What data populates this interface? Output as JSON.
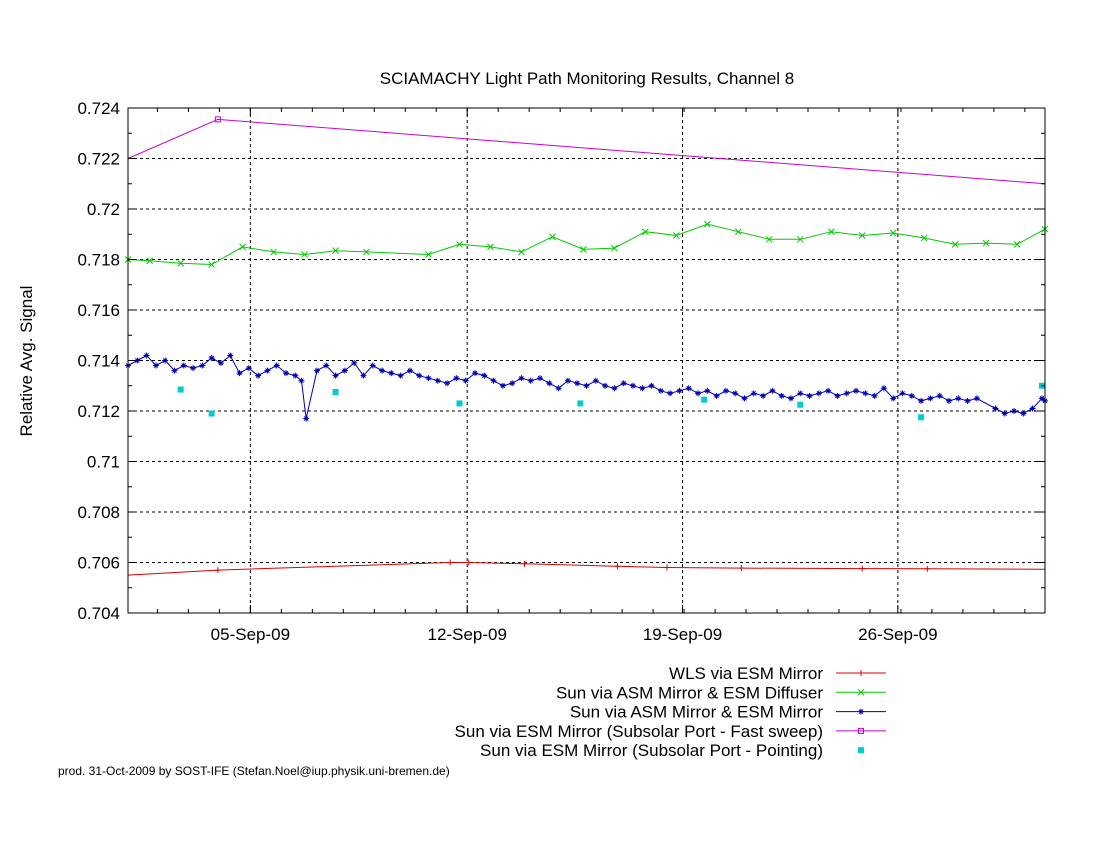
{
  "credit": "prod. 31-Oct-2009 by SOST-IFE (Stefan.Noel@iup.physik.uni-bremen.de)",
  "chart_data": {
    "type": "line",
    "title": "SCIAMACHY Light Path Monitoring Results, Channel 8",
    "xlabel": "",
    "ylabel": "Relative Avg. Signal",
    "x_unit": "day of September 2009",
    "xlim": [
      1.2,
      30.8
    ],
    "ylim": [
      0.704,
      0.724
    ],
    "y_ticks": [
      0.704,
      0.706,
      0.708,
      0.71,
      0.712,
      0.714,
      0.716,
      0.718,
      0.72,
      0.722,
      0.724
    ],
    "y_tick_labels": [
      "0.704",
      "0.706",
      "0.708",
      "0.71",
      "0.712",
      "0.714",
      "0.716",
      "0.718",
      "0.72",
      "0.722",
      "0.724"
    ],
    "x_ticks": [
      5.15,
      12.15,
      19.1,
      26.05
    ],
    "x_tick_labels": [
      "05-Sep-09",
      "12-Sep-09",
      "19-Sep-09",
      "26-Sep-09"
    ],
    "grid": true,
    "legend_position": "bottom-right, below plot",
    "series": [
      {
        "name": "WLS via ESM Mirror",
        "color": "#dd0000",
        "marker": "plus",
        "x": [
          1.2,
          4.1,
          11.6,
          12.2,
          14.0,
          17.0,
          18.6,
          21.0,
          24.9,
          27.0,
          30.8
        ],
        "y": [
          0.7055,
          0.7057,
          0.706,
          0.706,
          0.70595,
          0.70585,
          0.7058,
          0.70578,
          0.70576,
          0.70575,
          0.70573
        ]
      },
      {
        "name": "Sun via ASM Mirror & ESM Diffuser",
        "color": "#00cc00",
        "marker": "x",
        "x": [
          1.2,
          1.9,
          2.9,
          3.9,
          4.9,
          5.9,
          6.9,
          7.9,
          8.9,
          10.9,
          11.9,
          12.9,
          13.9,
          14.9,
          15.9,
          16.9,
          17.9,
          18.9,
          19.9,
          20.9,
          21.9,
          22.9,
          23.9,
          24.9,
          25.9,
          26.9,
          27.9,
          28.9,
          29.9,
          30.8
        ],
        "y": [
          0.718,
          0.71795,
          0.71785,
          0.7178,
          0.7185,
          0.7183,
          0.7182,
          0.71835,
          0.7183,
          0.7182,
          0.7186,
          0.7185,
          0.7183,
          0.7189,
          0.7184,
          0.71845,
          0.7191,
          0.71895,
          0.7194,
          0.7191,
          0.7188,
          0.7188,
          0.7191,
          0.71895,
          0.71905,
          0.71885,
          0.7186,
          0.71865,
          0.7186,
          0.7192
        ]
      },
      {
        "name": "Sun via ASM Mirror & ESM Mirror",
        "color": "#0000b0",
        "marker": "star",
        "x": [
          1.2,
          1.5,
          1.8,
          2.1,
          2.4,
          2.7,
          3.0,
          3.3,
          3.6,
          3.9,
          4.2,
          4.5,
          4.8,
          5.1,
          5.4,
          5.7,
          6.0,
          6.3,
          6.6,
          6.8,
          6.95,
          7.3,
          7.6,
          7.9,
          8.2,
          8.5,
          8.8,
          9.1,
          9.4,
          9.7,
          10.0,
          10.3,
          10.6,
          10.9,
          11.2,
          11.5,
          11.8,
          12.1,
          12.4,
          12.7,
          13.0,
          13.3,
          13.6,
          13.9,
          14.2,
          14.5,
          14.8,
          15.1,
          15.4,
          15.7,
          16.0,
          16.3,
          16.6,
          16.9,
          17.2,
          17.5,
          17.8,
          18.1,
          18.4,
          18.7,
          19.0,
          19.3,
          19.6,
          19.9,
          20.2,
          20.5,
          20.8,
          21.1,
          21.4,
          21.7,
          22.0,
          22.3,
          22.6,
          22.9,
          23.2,
          23.5,
          23.8,
          24.1,
          24.4,
          24.7,
          25.0,
          25.3,
          25.6,
          25.9,
          26.2,
          26.5,
          26.8,
          27.1,
          27.4,
          27.7,
          28.0,
          28.3,
          28.6,
          29.2,
          29.5,
          29.8,
          30.1,
          30.4,
          30.7,
          30.8
        ],
        "y": [
          0.7138,
          0.714,
          0.7142,
          0.7138,
          0.714,
          0.7136,
          0.7138,
          0.7137,
          0.7138,
          0.7141,
          0.7139,
          0.7142,
          0.7135,
          0.7137,
          0.7134,
          0.7136,
          0.7138,
          0.7135,
          0.7134,
          0.7132,
          0.7117,
          0.7136,
          0.7138,
          0.7134,
          0.7136,
          0.7139,
          0.7134,
          0.7138,
          0.7136,
          0.7135,
          0.7134,
          0.7136,
          0.7134,
          0.7133,
          0.7132,
          0.7131,
          0.7133,
          0.7132,
          0.7135,
          0.7134,
          0.7132,
          0.713,
          0.7131,
          0.7133,
          0.7132,
          0.7133,
          0.7131,
          0.7129,
          0.7132,
          0.7131,
          0.713,
          0.7132,
          0.713,
          0.7129,
          0.7131,
          0.713,
          0.7129,
          0.713,
          0.7128,
          0.7127,
          0.7128,
          0.7129,
          0.7127,
          0.7128,
          0.7126,
          0.7128,
          0.7127,
          0.7125,
          0.7127,
          0.7126,
          0.7128,
          0.7126,
          0.7125,
          0.7127,
          0.7126,
          0.7127,
          0.7128,
          0.7126,
          0.7127,
          0.7128,
          0.7127,
          0.7126,
          0.7129,
          0.7125,
          0.7127,
          0.7126,
          0.7124,
          0.7125,
          0.7126,
          0.7124,
          0.7125,
          0.7124,
          0.7125,
          0.7121,
          0.7119,
          0.712,
          0.7119,
          0.7121,
          0.7125,
          0.7124
        ]
      },
      {
        "name": "Sun via ESM Mirror (Subsolar Port - Fast sweep)",
        "color": "#cc00cc",
        "marker": "square",
        "x": [
          1.2,
          4.1,
          30.8
        ],
        "y": [
          0.722,
          0.72355,
          0.721
        ]
      },
      {
        "name": "Sun via ESM Mirror (Subsolar Port - Pointing)",
        "color": "#00cccc",
        "marker": "dot",
        "line": false,
        "x": [
          2.9,
          3.9,
          7.9,
          11.9,
          15.8,
          19.8,
          22.9,
          26.8,
          30.7
        ],
        "y": [
          0.71285,
          0.7119,
          0.71275,
          0.7123,
          0.7123,
          0.71245,
          0.71225,
          0.71175,
          0.713
        ]
      }
    ]
  }
}
